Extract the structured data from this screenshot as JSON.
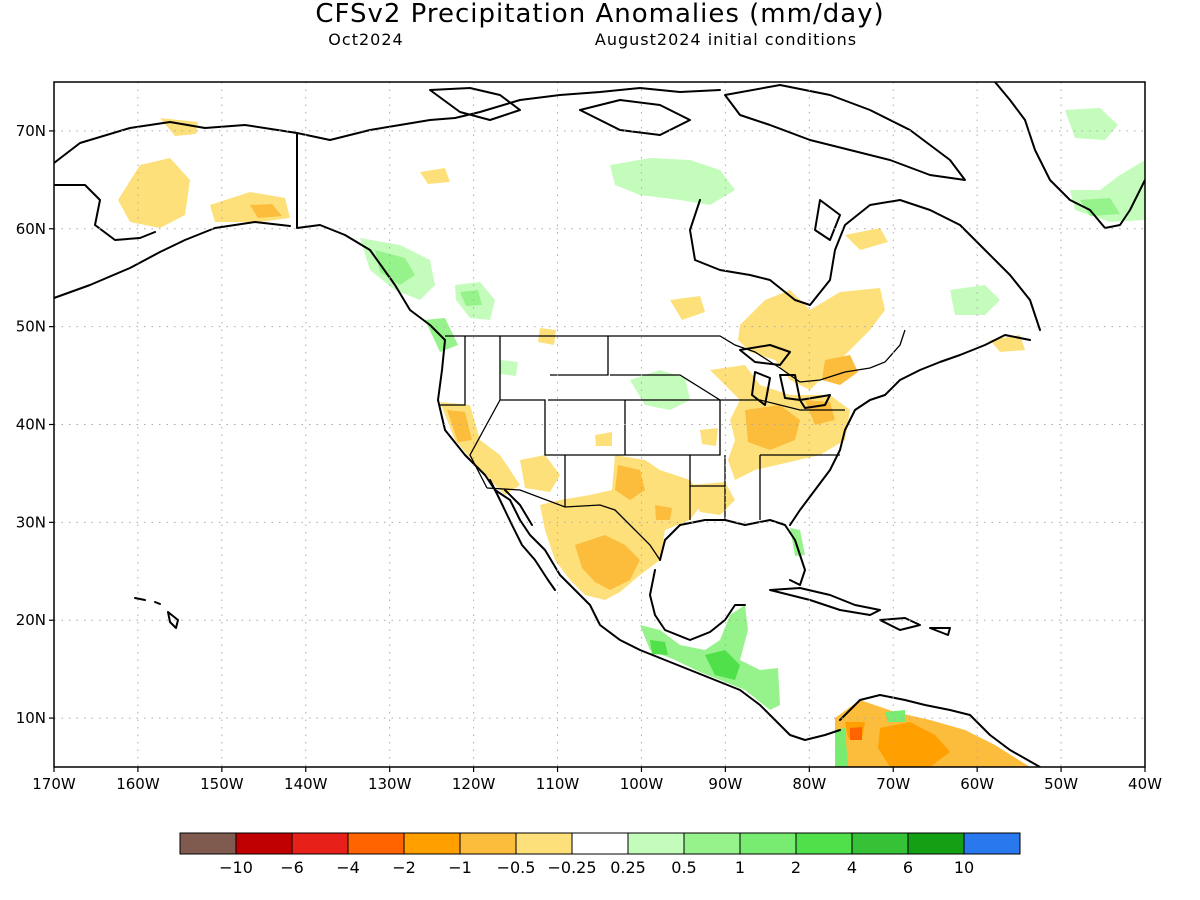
{
  "header": {
    "title": "CFSv2 Precipitation Anomalies (mm/day)",
    "valid_month": "Oct2024",
    "init_conditions": "August2024 initial conditions"
  },
  "map": {
    "lon_range": [
      -170,
      -40
    ],
    "lat_range": [
      5,
      75
    ],
    "lat_labels": [
      {
        "lat": 70,
        "label": "70N"
      },
      {
        "lat": 60,
        "label": "60N"
      },
      {
        "lat": 50,
        "label": "50N"
      },
      {
        "lat": 40,
        "label": "40N"
      },
      {
        "lat": 30,
        "label": "30N"
      },
      {
        "lat": 20,
        "label": "20N"
      },
      {
        "lat": 10,
        "label": "10N"
      }
    ],
    "lon_labels": [
      {
        "lon": -170,
        "label": "170W"
      },
      {
        "lon": -160,
        "label": "160W"
      },
      {
        "lon": -150,
        "label": "150W"
      },
      {
        "lon": -140,
        "label": "140W"
      },
      {
        "lon": -130,
        "label": "130W"
      },
      {
        "lon": -120,
        "label": "120W"
      },
      {
        "lon": -110,
        "label": "110W"
      },
      {
        "lon": -100,
        "label": "100W"
      },
      {
        "lon": -90,
        "label": "90W"
      },
      {
        "lon": -80,
        "label": "80W"
      },
      {
        "lon": -70,
        "label": "70W"
      },
      {
        "lon": -60,
        "label": "60W"
      },
      {
        "lon": -50,
        "label": "50W"
      },
      {
        "lon": -40,
        "label": "40W"
      }
    ],
    "grid": true
  },
  "legend": {
    "bins": [
      {
        "color": "#7f5a4f"
      },
      {
        "color": "#c00000"
      },
      {
        "color": "#e8201a"
      },
      {
        "color": "#ff6400"
      },
      {
        "color": "#ffa000"
      },
      {
        "color": "#fcbc3c"
      },
      {
        "color": "#fde07a"
      },
      {
        "color": "#ffffff"
      },
      {
        "color": "#c4fcbc"
      },
      {
        "color": "#96f28a"
      },
      {
        "color": "#78ec70"
      },
      {
        "color": "#50e04a"
      },
      {
        "color": "#36c236"
      },
      {
        "color": "#14a014"
      },
      {
        "color": "#2a78ee"
      }
    ],
    "labels": [
      "−10",
      "−6",
      "−4",
      "−2",
      "−1",
      "−0.5",
      "−0.25",
      "0.25",
      "0.5",
      "1",
      "2",
      "4",
      "6",
      "10"
    ]
  },
  "anomaly_regions": [
    {
      "name": "central-mexico-dry",
      "level": "-1 to -0.5",
      "color": "#fcbc3c"
    },
    {
      "name": "texas-dry",
      "level": "-0.5 to -0.25",
      "color": "#fde07a"
    },
    {
      "name": "ohio-valley-dry",
      "level": "-1 to -0.5",
      "color": "#fcbc3c"
    },
    {
      "name": "northern-south-america-dry",
      "level": "-2 to -1",
      "color": "#ffa000"
    },
    {
      "name": "pacific-northwest-wet",
      "level": "0.5 to 1",
      "color": "#96f28a"
    },
    {
      "name": "central-america-wet",
      "level": "1 to 2",
      "color": "#78ec70"
    },
    {
      "name": "greenland-wet",
      "level": "0.5 to 1",
      "color": "#96f28a"
    },
    {
      "name": "nunavut-wet",
      "level": "0.5 to 1",
      "color": "#96f28a"
    }
  ]
}
